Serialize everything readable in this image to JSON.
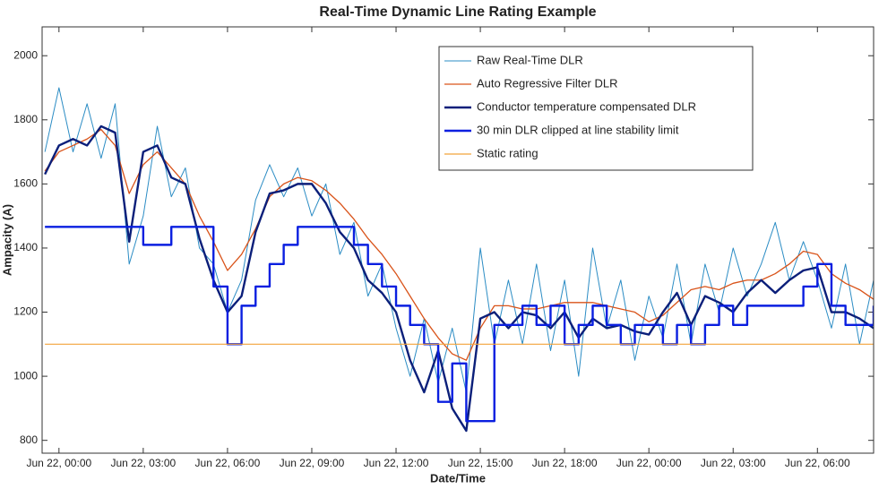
{
  "chart_data": {
    "type": "line",
    "title": "Real-Time Dynamic Line Rating Example",
    "x_label": "Date/Time",
    "y_label": "Ampacity (A)",
    "x": [
      -0.5,
      0,
      0.5,
      1,
      1.5,
      2,
      2.5,
      3,
      3.5,
      4,
      4.5,
      5,
      5.5,
      6,
      6.5,
      7,
      7.5,
      8,
      8.5,
      9,
      9.5,
      10,
      10.5,
      11,
      11.5,
      12,
      12.5,
      13,
      13.5,
      14,
      14.5,
      15,
      15.5,
      16,
      16.5,
      17,
      17.5,
      18,
      18.5,
      19,
      19.5,
      20,
      20.5,
      21,
      21.5,
      22,
      22.5,
      23,
      23.5,
      24,
      24.5,
      25,
      25.5,
      26,
      26.5,
      27,
      27.5,
      28,
      28.5,
      29
    ],
    "xlim": [
      -0.6,
      29
    ],
    "xticks": [
      {
        "value": 0,
        "label": "Jun 22, 00:00"
      },
      {
        "value": 3,
        "label": "Jun 22, 03:00"
      },
      {
        "value": 6,
        "label": "Jun 22, 06:00"
      },
      {
        "value": 9,
        "label": "Jun 22, 09:00"
      },
      {
        "value": 12,
        "label": "Jun 22, 12:00"
      },
      {
        "value": 15,
        "label": "Jun 22, 15:00"
      },
      {
        "value": 18,
        "label": "Jun 22, 18:00"
      },
      {
        "value": 21,
        "label": "Jun 22, 00:00"
      },
      {
        "value": 24,
        "label": "Jun 22, 03:00"
      },
      {
        "value": 27,
        "label": "Jun 22, 06:00"
      }
    ],
    "ylim": [
      760,
      2090
    ],
    "yticks": [
      800,
      1000,
      1200,
      1400,
      1600,
      1800,
      2000
    ],
    "legend": "upper right",
    "series": [
      {
        "name": "Raw Real-Time DLR",
        "color": "#2b8cc4",
        "values": [
          1700,
          1900,
          1700,
          1850,
          1680,
          1850,
          1350,
          1500,
          1780,
          1560,
          1650,
          1400,
          1350,
          1200,
          1300,
          1550,
          1660,
          1560,
          1650,
          1500,
          1600,
          1380,
          1480,
          1250,
          1350,
          1150,
          1000,
          1180,
          980,
          1150,
          950,
          1400,
          1100,
          1300,
          1100,
          1350,
          1080,
          1300,
          1000,
          1400,
          1150,
          1300,
          1050,
          1250,
          1120,
          1350,
          1100,
          1350,
          1200,
          1400,
          1250,
          1350,
          1480,
          1300,
          1420,
          1300,
          1150,
          1350,
          1100,
          1300
        ]
      },
      {
        "name": "Auto Regressive Filter DLR",
        "color": "#d95319",
        "values": [
          1640,
          1700,
          1720,
          1740,
          1770,
          1720,
          1570,
          1660,
          1700,
          1650,
          1600,
          1500,
          1420,
          1330,
          1380,
          1460,
          1560,
          1600,
          1620,
          1610,
          1580,
          1540,
          1490,
          1430,
          1380,
          1320,
          1250,
          1180,
          1120,
          1070,
          1050,
          1150,
          1220,
          1220,
          1210,
          1210,
          1220,
          1230,
          1230,
          1230,
          1220,
          1210,
          1200,
          1170,
          1190,
          1230,
          1270,
          1280,
          1270,
          1290,
          1300,
          1300,
          1320,
          1350,
          1390,
          1380,
          1320,
          1290,
          1270,
          1240
        ]
      },
      {
        "name": "Conductor temperature compensated DLR",
        "color": "#0b1f7a",
        "values": [
          1630,
          1720,
          1740,
          1720,
          1780,
          1760,
          1420,
          1700,
          1720,
          1620,
          1600,
          1430,
          1300,
          1200,
          1250,
          1450,
          1570,
          1580,
          1600,
          1600,
          1540,
          1450,
          1400,
          1300,
          1260,
          1200,
          1050,
          950,
          1080,
          900,
          830,
          1180,
          1200,
          1150,
          1200,
          1190,
          1150,
          1200,
          1120,
          1180,
          1150,
          1160,
          1140,
          1130,
          1200,
          1260,
          1160,
          1250,
          1230,
          1200,
          1260,
          1300,
          1260,
          1300,
          1330,
          1340,
          1200,
          1200,
          1180,
          1150
        ]
      },
      {
        "name": "30 min DLR clipped at line stability limit",
        "color": "#0a1fe0",
        "step": true,
        "values": [
          1466,
          1466,
          1466,
          1466,
          1466,
          1466,
          1466,
          1410,
          1410,
          1466,
          1466,
          1466,
          1280,
          1100,
          1220,
          1280,
          1350,
          1410,
          1466,
          1466,
          1466,
          1466,
          1410,
          1350,
          1280,
          1220,
          1160,
          1100,
          920,
          1040,
          860,
          860,
          1160,
          1160,
          1220,
          1160,
          1220,
          1100,
          1160,
          1220,
          1160,
          1100,
          1160,
          1160,
          1100,
          1160,
          1100,
          1160,
          1220,
          1160,
          1220,
          1220,
          1220,
          1220,
          1280,
          1350,
          1220,
          1160,
          1160,
          1220
        ]
      },
      {
        "name": "Static rating",
        "color": "#f2a33a",
        "values": [
          1100,
          1100,
          1100,
          1100,
          1100,
          1100,
          1100,
          1100,
          1100,
          1100,
          1100,
          1100,
          1100,
          1100,
          1100,
          1100,
          1100,
          1100,
          1100,
          1100,
          1100,
          1100,
          1100,
          1100,
          1100,
          1100,
          1100,
          1100,
          1100,
          1100,
          1100,
          1100,
          1100,
          1100,
          1100,
          1100,
          1100,
          1100,
          1100,
          1100,
          1100,
          1100,
          1100,
          1100,
          1100,
          1100,
          1100,
          1100,
          1100,
          1100,
          1100,
          1100,
          1100,
          1100,
          1100,
          1100,
          1100,
          1100,
          1100,
          1100
        ]
      }
    ]
  }
}
